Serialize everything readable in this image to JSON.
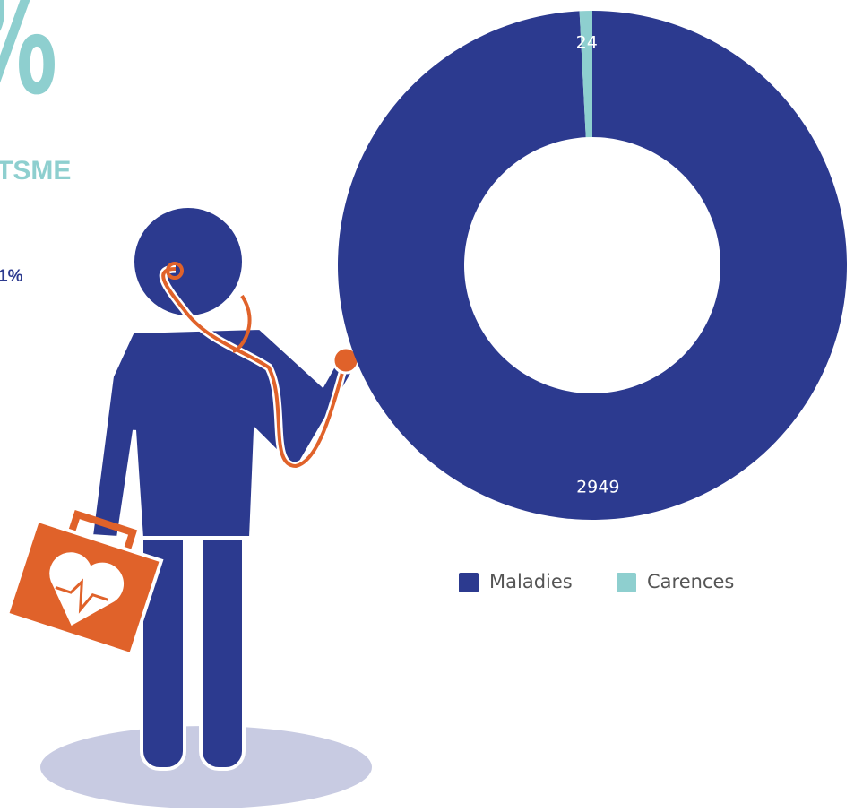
{
  "header": {
    "big_symbol": "%",
    "label": "TSME",
    "stat": "1%"
  },
  "chart_data": {
    "type": "donut",
    "categories": [
      "Maladies",
      "Carences"
    ],
    "values": [
      2949,
      24
    ],
    "colors": [
      "#2c3a8f",
      "#8ecfcf"
    ],
    "legend": "bottom"
  }
}
